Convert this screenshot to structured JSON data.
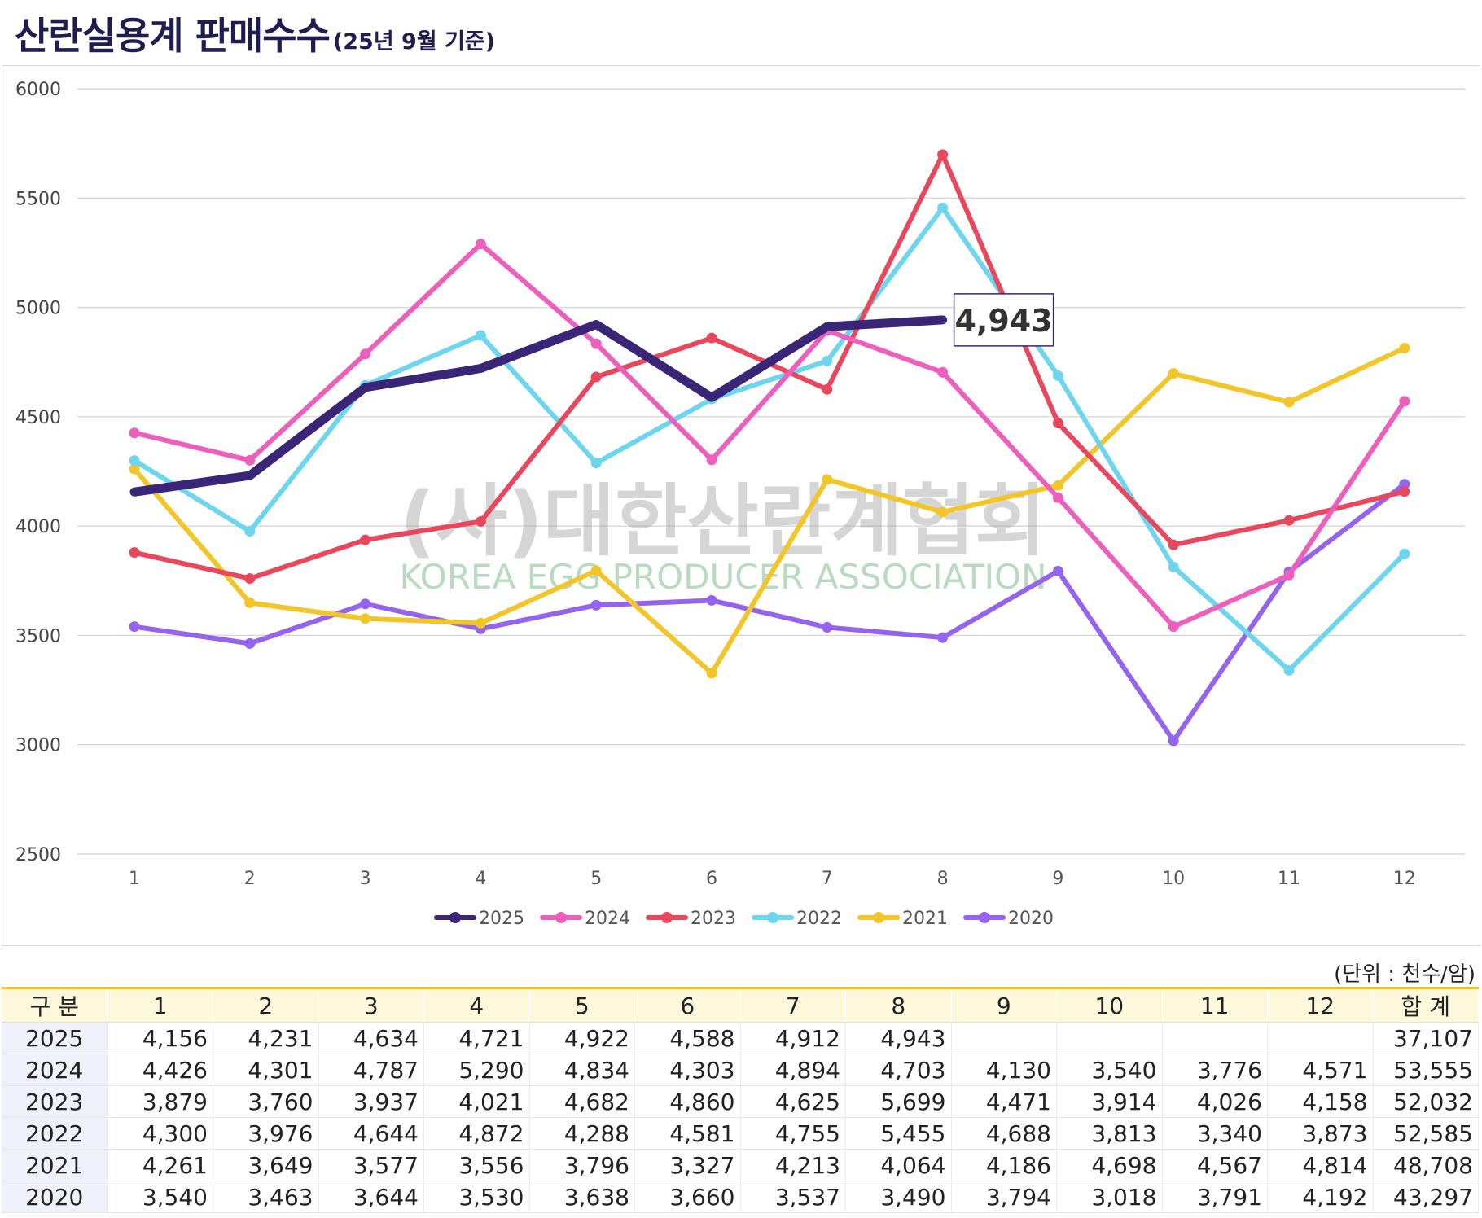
{
  "header": {
    "title_main": "산란실용계 판매수수",
    "title_sub": "(25년 9월 기준)"
  },
  "watermark": {
    "korean": "(사)대한산란계협회",
    "english": "KOREA EGG PRODUCER ASSOCIATION"
  },
  "colors": {
    "2025": "#3a2577",
    "2024": "#ec5fbd",
    "2023": "#e8485d",
    "2022": "#6dd6ee",
    "2021": "#f2c62b",
    "2020": "#9464ee"
  },
  "chart_data": {
    "type": "line",
    "x": [
      "1",
      "2",
      "3",
      "4",
      "5",
      "6",
      "7",
      "8",
      "9",
      "10",
      "11",
      "12"
    ],
    "ylim": [
      2500,
      6000
    ],
    "yticks": [
      "6000",
      "5500",
      "5000",
      "4500",
      "4000",
      "3500",
      "3000",
      "2500"
    ],
    "grid": true,
    "legend_position": "bottom",
    "callout": "4,943",
    "series": [
      {
        "name": "2025",
        "values": [
          4156,
          4231,
          4634,
          4721,
          4922,
          4588,
          4912,
          4943,
          null,
          null,
          null,
          null
        ]
      },
      {
        "name": "2024",
        "values": [
          4426,
          4301,
          4787,
          5290,
          4834,
          4303,
          4894,
          4703,
          4130,
          3540,
          3776,
          4571
        ]
      },
      {
        "name": "2023",
        "values": [
          3879,
          3760,
          3937,
          4021,
          4682,
          4860,
          4625,
          5699,
          4471,
          3914,
          4026,
          4158
        ]
      },
      {
        "name": "2022",
        "values": [
          4300,
          3976,
          4644,
          4872,
          4288,
          4581,
          4755,
          5455,
          4688,
          3813,
          3340,
          3873
        ]
      },
      {
        "name": "2021",
        "values": [
          4261,
          3649,
          3577,
          3556,
          3796,
          3327,
          4213,
          4064,
          4186,
          4698,
          4567,
          4814
        ]
      },
      {
        "name": "2020",
        "values": [
          3540,
          3463,
          3644,
          3530,
          3638,
          3660,
          3537,
          3490,
          3794,
          3018,
          3791,
          4192
        ]
      }
    ]
  },
  "table": {
    "unit_label": "(단위 : 천수/암)",
    "headers": [
      "구 분",
      "1",
      "2",
      "3",
      "4",
      "5",
      "6",
      "7",
      "8",
      "9",
      "10",
      "11",
      "12",
      "합 계"
    ],
    "rows": [
      [
        "2025",
        "4,156",
        "4,231",
        "4,634",
        "4,721",
        "4,922",
        "4,588",
        "4,912",
        "4,943",
        "",
        "",
        "",
        "",
        "37,107"
      ],
      [
        "2024",
        "4,426",
        "4,301",
        "4,787",
        "5,290",
        "4,834",
        "4,303",
        "4,894",
        "4,703",
        "4,130",
        "3,540",
        "3,776",
        "4,571",
        "53,555"
      ],
      [
        "2023",
        "3,879",
        "3,760",
        "3,937",
        "4,021",
        "4,682",
        "4,860",
        "4,625",
        "5,699",
        "4,471",
        "3,914",
        "4,026",
        "4,158",
        "52,032"
      ],
      [
        "2022",
        "4,300",
        "3,976",
        "4,644",
        "4,872",
        "4,288",
        "4,581",
        "4,755",
        "5,455",
        "4,688",
        "3,813",
        "3,340",
        "3,873",
        "52,585"
      ],
      [
        "2021",
        "4,261",
        "3,649",
        "3,577",
        "3,556",
        "3,796",
        "3,327",
        "4,213",
        "4,064",
        "4,186",
        "4,698",
        "4,567",
        "4,814",
        "48,708"
      ],
      [
        "2020",
        "3,540",
        "3,463",
        "3,644",
        "3,530",
        "3,638",
        "3,660",
        "3,537",
        "3,490",
        "3,794",
        "3,018",
        "3,791",
        "4,192",
        "43,297"
      ]
    ]
  }
}
